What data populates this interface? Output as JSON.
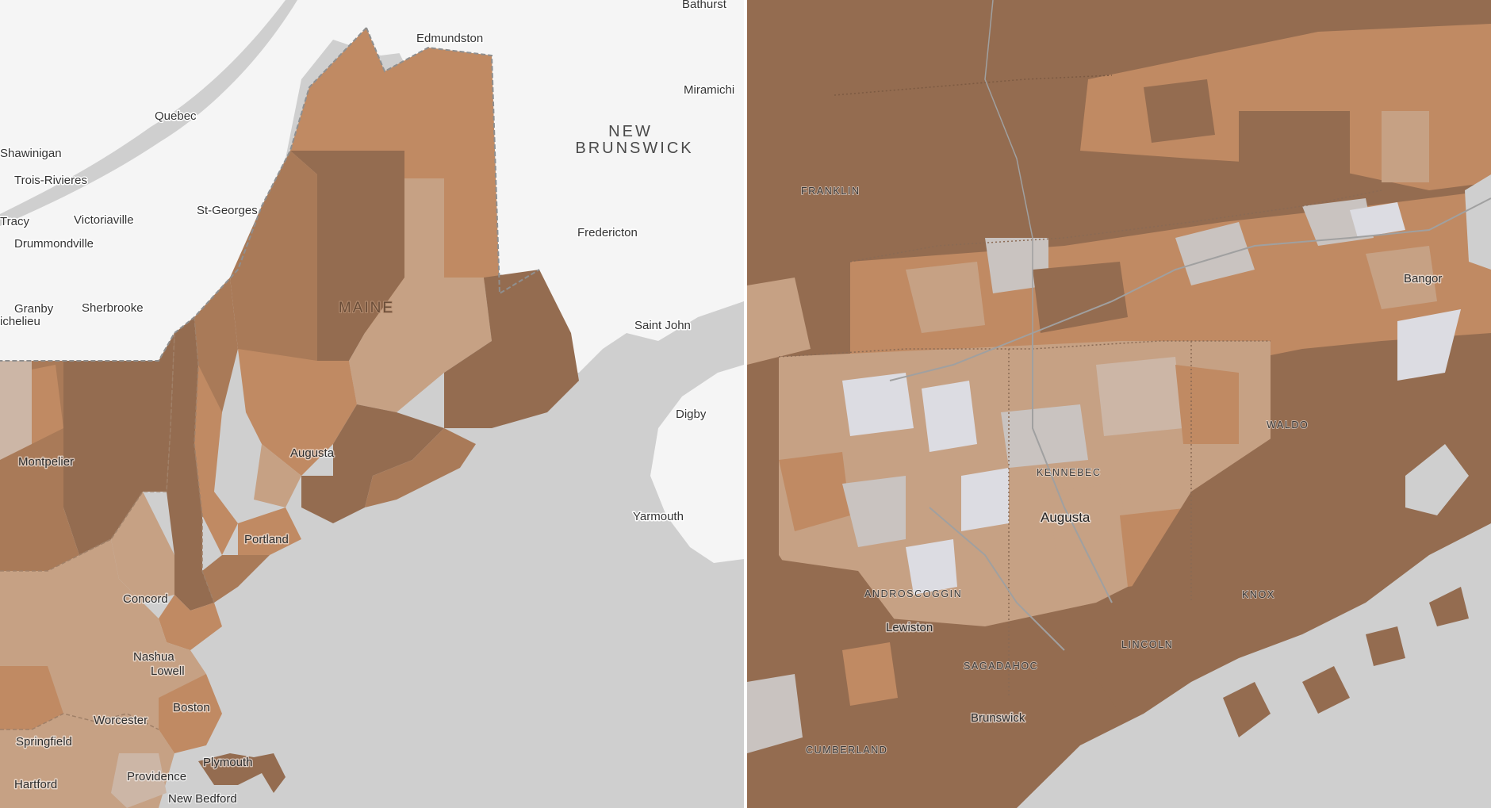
{
  "colors": {
    "water": "#cfcfcf",
    "canada_land": "#f5f5f5",
    "dark": "#946c50",
    "medium": "#a97a58",
    "orange": "#c08a63",
    "tan": "#c6a184",
    "pale": "#ccb6a6",
    "gray": "#c9c3c0",
    "lavender": "#dcdce2",
    "border": "#8f8f8f"
  },
  "left_map": {
    "region_label": [
      "NEW",
      "BRUNSWICK"
    ],
    "state_label": "MAINE",
    "cities": [
      "Bathurst",
      "Edmundston",
      "Miramichi",
      "Quebec",
      "Shawinigan",
      "Trois-Rivieres",
      "Victoriaville",
      "St-Georges",
      "Tracy",
      "Drummondville",
      "Fredericton",
      "Granby",
      "Sherbrooke",
      "ichelieu",
      "Saint John",
      "Digby",
      "Montpelier",
      "Augusta",
      "Yarmouth",
      "Portland",
      "Concord",
      "Nashua",
      "Lowell",
      "Boston",
      "Worcester",
      "Springfield",
      "Plymouth",
      "Providence",
      "Hartford",
      "New Bedford"
    ]
  },
  "right_map": {
    "counties": [
      "FRANKLIN",
      "KENNEBEC",
      "WALDO",
      "ANDROSCOGGIN",
      "KNOX",
      "LINCOLN",
      "SAGADAHOC",
      "CUMBERLAND"
    ],
    "cities": [
      "Bangor",
      "Augusta",
      "Lewiston",
      "Brunswick"
    ]
  }
}
